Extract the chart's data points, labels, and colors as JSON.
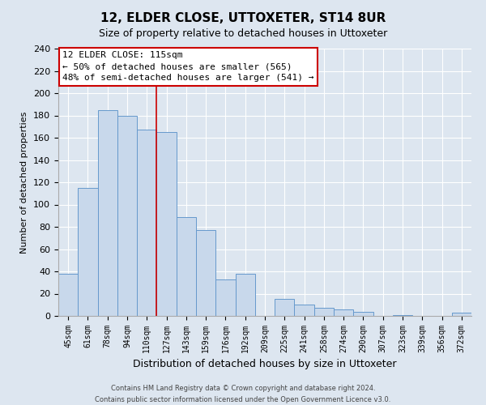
{
  "title": "12, ELDER CLOSE, UTTOXETER, ST14 8UR",
  "subtitle": "Size of property relative to detached houses in Uttoxeter",
  "xlabel": "Distribution of detached houses by size in Uttoxeter",
  "ylabel": "Number of detached properties",
  "categories": [
    "45sqm",
    "61sqm",
    "78sqm",
    "94sqm",
    "110sqm",
    "127sqm",
    "143sqm",
    "159sqm",
    "176sqm",
    "192sqm",
    "209sqm",
    "225sqm",
    "241sqm",
    "258sqm",
    "274sqm",
    "290sqm",
    "307sqm",
    "323sqm",
    "339sqm",
    "356sqm",
    "372sqm"
  ],
  "values": [
    38,
    115,
    185,
    180,
    167,
    165,
    89,
    77,
    33,
    38,
    0,
    15,
    10,
    7,
    6,
    4,
    0,
    1,
    0,
    0,
    3
  ],
  "bar_color": "#c8d8eb",
  "bar_edge_color": "#6699cc",
  "highlight_index": 4,
  "highlight_line_color": "#cc0000",
  "annotation_title": "12 ELDER CLOSE: 115sqm",
  "annotation_line1": "← 50% of detached houses are smaller (565)",
  "annotation_line2": "48% of semi-detached houses are larger (541) →",
  "annotation_box_facecolor": "#ffffff",
  "annotation_box_edgecolor": "#cc0000",
  "ylim": [
    0,
    240
  ],
  "yticks": [
    0,
    20,
    40,
    60,
    80,
    100,
    120,
    140,
    160,
    180,
    200,
    220,
    240
  ],
  "background_color": "#dde6f0",
  "plot_bg_color": "#dde6f0",
  "grid_color": "#ffffff",
  "footnote1": "Contains HM Land Registry data © Crown copyright and database right 2024.",
  "footnote2": "Contains public sector information licensed under the Open Government Licence v3.0."
}
